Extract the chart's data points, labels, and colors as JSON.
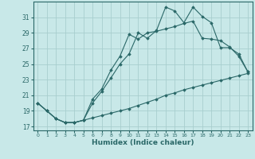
{
  "title": "",
  "xlabel": "Humidex (Indice chaleur)",
  "ylabel": "",
  "background_color": "#c8e8e8",
  "grid_color": "#a8cece",
  "line_color": "#2a6868",
  "ylim": [
    16.5,
    33.0
  ],
  "xlim": [
    -0.5,
    23.5
  ],
  "yticks": [
    17,
    19,
    21,
    23,
    25,
    27,
    29,
    31
  ],
  "xticks": [
    0,
    1,
    2,
    3,
    4,
    5,
    6,
    7,
    8,
    9,
    10,
    11,
    12,
    13,
    14,
    15,
    16,
    17,
    18,
    19,
    20,
    21,
    22,
    23
  ],
  "series1_x": [
    0,
    1,
    2,
    3,
    4,
    5,
    6,
    7,
    8,
    9,
    10,
    11,
    12,
    13,
    14,
    15,
    16,
    17,
    18,
    19,
    20,
    21,
    22,
    23
  ],
  "series1_y": [
    20.0,
    19.0,
    18.0,
    17.5,
    17.5,
    17.8,
    20.0,
    21.5,
    23.2,
    25.0,
    26.3,
    29.0,
    28.3,
    29.3,
    32.3,
    31.8,
    30.3,
    32.3,
    31.1,
    30.3,
    27.1,
    27.1,
    26.3,
    24.0
  ],
  "series2_x": [
    0,
    1,
    2,
    3,
    4,
    5,
    6,
    7,
    8,
    9,
    10,
    11,
    12,
    13,
    14,
    15,
    16,
    17,
    18,
    19,
    20,
    21,
    22,
    23
  ],
  "series2_y": [
    20.0,
    19.0,
    18.0,
    17.5,
    17.5,
    17.8,
    20.5,
    21.8,
    24.2,
    26.0,
    28.8,
    28.2,
    29.0,
    29.2,
    29.5,
    29.8,
    30.2,
    30.5,
    28.3,
    28.2,
    28.0,
    27.2,
    26.0,
    24.0
  ],
  "series3_x": [
    0,
    1,
    2,
    3,
    4,
    5,
    6,
    7,
    8,
    9,
    10,
    11,
    12,
    13,
    14,
    15,
    16,
    17,
    18,
    19,
    20,
    21,
    22,
    23
  ],
  "series3_y": [
    20.0,
    19.0,
    18.0,
    17.5,
    17.5,
    17.8,
    18.1,
    18.4,
    18.7,
    19.0,
    19.3,
    19.7,
    20.1,
    20.5,
    21.0,
    21.3,
    21.7,
    22.0,
    22.3,
    22.6,
    22.9,
    23.2,
    23.5,
    23.8
  ]
}
